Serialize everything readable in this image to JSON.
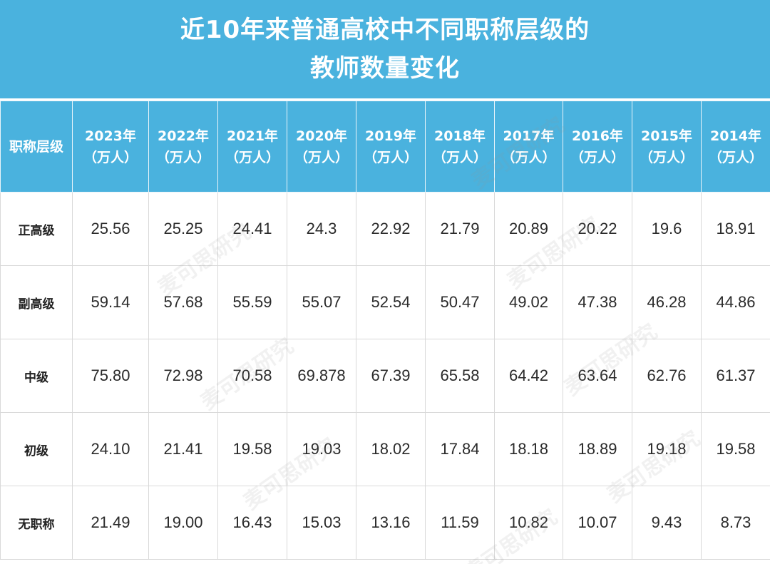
{
  "title": {
    "line1": "近10年来普通高校中不同职称层级的",
    "line2": "教师数量变化"
  },
  "colors": {
    "header_bg": "#4ab2de",
    "header_text": "#ffffff",
    "grid_line": "#d9d9d9",
    "cell_text": "#2a2a2a"
  },
  "chart_data": {
    "type": "table",
    "title": "近10年来普通高校中不同职称层级的教师数量变化",
    "row_header_label": "职称层级",
    "unit_label": "（万人）",
    "columns": [
      "2023年",
      "2022年",
      "2021年",
      "2020年",
      "2019年",
      "2018年",
      "2017年",
      "2016年",
      "2015年",
      "2014年"
    ],
    "rows": [
      {
        "label": "正高级",
        "values": [
          "25.56",
          "25.25",
          "24.41",
          "24.3",
          "22.92",
          "21.79",
          "20.89",
          "20.22",
          "19.6",
          "18.91"
        ]
      },
      {
        "label": "副高级",
        "values": [
          "59.14",
          "57.68",
          "55.59",
          "55.07",
          "52.54",
          "50.47",
          "49.02",
          "47.38",
          "46.28",
          "44.86"
        ]
      },
      {
        "label": "中级",
        "values": [
          "75.80",
          "72.98",
          "70.58",
          "69.878",
          "67.39",
          "65.58",
          "64.42",
          "63.64",
          "62.76",
          "61.37"
        ]
      },
      {
        "label": "初级",
        "values": [
          "24.10",
          "21.41",
          "19.58",
          "19.03",
          "18.02",
          "17.84",
          "18.18",
          "18.89",
          "19.18",
          "19.58"
        ]
      },
      {
        "label": "无职称",
        "values": [
          "21.49",
          "19.00",
          "16.43",
          "15.03",
          "13.16",
          "11.59",
          "10.82",
          "10.07",
          "9.43",
          "8.73"
        ]
      }
    ]
  },
  "watermark": {
    "text": "麦可思研究"
  }
}
